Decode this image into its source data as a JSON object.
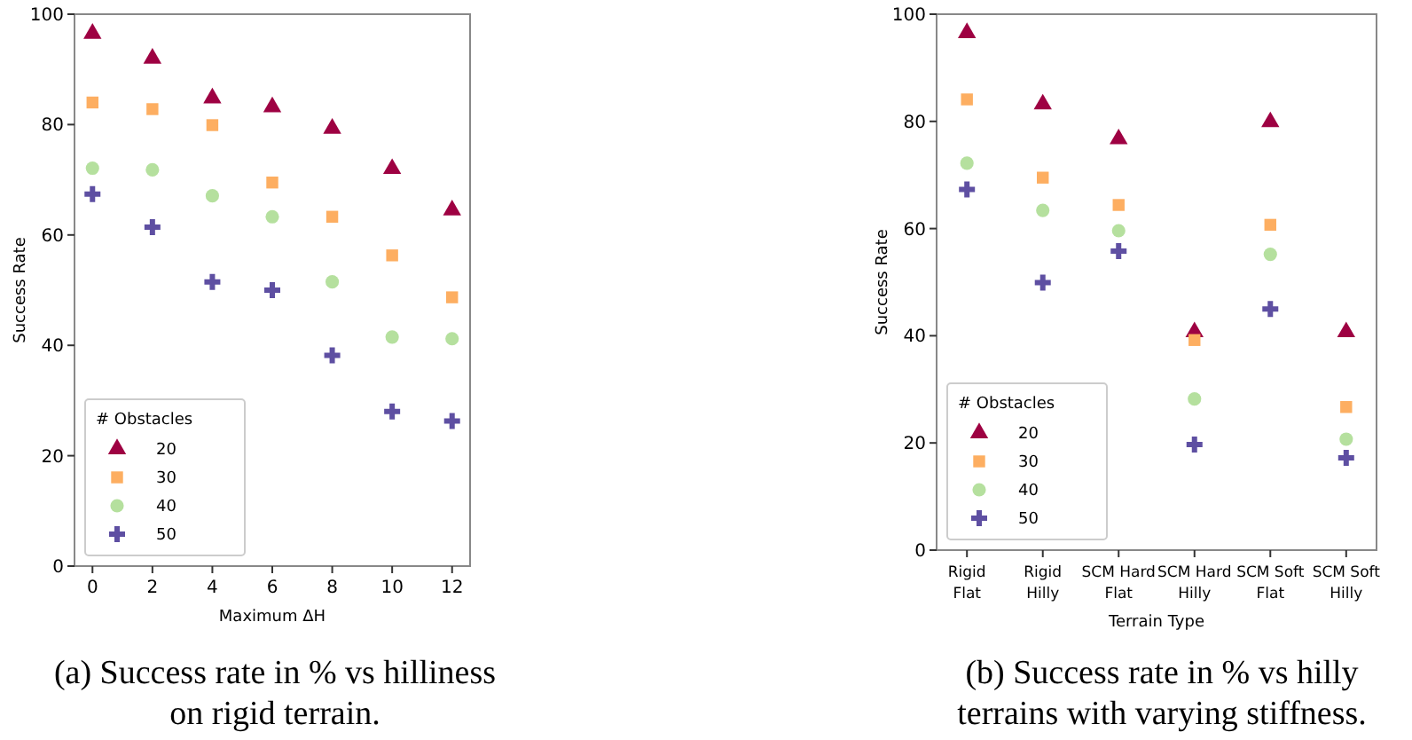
{
  "chart_data": [
    {
      "type": "scatter",
      "xlabel": "Maximum ΔH",
      "ylabel": "Success Rate",
      "legend_title": "# Obstacles",
      "legend": "bottom left",
      "grid": false,
      "x": [
        0,
        2,
        4,
        6,
        8,
        10,
        12
      ],
      "xlim": [
        -0.6,
        12.6
      ],
      "xticks": [
        0,
        2,
        4,
        6,
        8,
        10,
        12
      ],
      "ylim": [
        0,
        100
      ],
      "yticks": [
        0,
        20,
        40,
        60,
        80,
        100
      ],
      "annotations": [
        "(a) Success rate in % vs hilliness on rigid terrain."
      ],
      "series": [
        {
          "name": "20",
          "color": "#9e0142",
          "marker": "triangle",
          "values": [
            96.5,
            92,
            84.8,
            83.2,
            79.3,
            72,
            64.5
          ]
        },
        {
          "name": "30",
          "color": "#fdae61",
          "marker": "square",
          "values": [
            84,
            82.8,
            79.9,
            69.5,
            63.3,
            56.3,
            48.7
          ]
        },
        {
          "name": "40",
          "color": "#b5e09e",
          "marker": "circle",
          "values": [
            72.1,
            71.8,
            67.1,
            63.3,
            51.5,
            41.5,
            41.2
          ]
        },
        {
          "name": "50",
          "color": "#5e4fa2",
          "marker": "cross",
          "values": [
            67.4,
            61.4,
            51.5,
            50,
            38.2,
            28,
            26.3
          ]
        }
      ]
    },
    {
      "type": "scatter",
      "xlabel": "Terrain Type",
      "ylabel": "Success Rate",
      "legend_title": "# Obstacles",
      "legend": "bottom left",
      "grid": false,
      "categories": [
        "Rigid Flat",
        "Rigid Hilly",
        "SCM Hard Flat",
        "SCM Hard Hilly",
        "SCM Soft Flat",
        "SCM Soft Hilly"
      ],
      "ylim": [
        0,
        100
      ],
      "yticks": [
        0,
        20,
        40,
        60,
        80,
        100
      ],
      "annotations": [
        "(b) Success rate in % vs hilly terrains with varying stiffness."
      ],
      "series": [
        {
          "name": "20",
          "color": "#9e0142",
          "marker": "triangle",
          "values": [
            96.5,
            83.2,
            76.7,
            40.7,
            79.9,
            40.7
          ]
        },
        {
          "name": "30",
          "color": "#fdae61",
          "marker": "square",
          "values": [
            84.1,
            69.5,
            64.4,
            39.2,
            60.7,
            26.7
          ]
        },
        {
          "name": "40",
          "color": "#b5e09e",
          "marker": "circle",
          "values": [
            72.2,
            63.4,
            59.6,
            28.2,
            55.2,
            20.7
          ]
        },
        {
          "name": "50",
          "color": "#5e4fa2",
          "marker": "cross",
          "values": [
            67.3,
            49.9,
            55.8,
            19.7,
            45,
            17.2
          ]
        }
      ]
    }
  ]
}
